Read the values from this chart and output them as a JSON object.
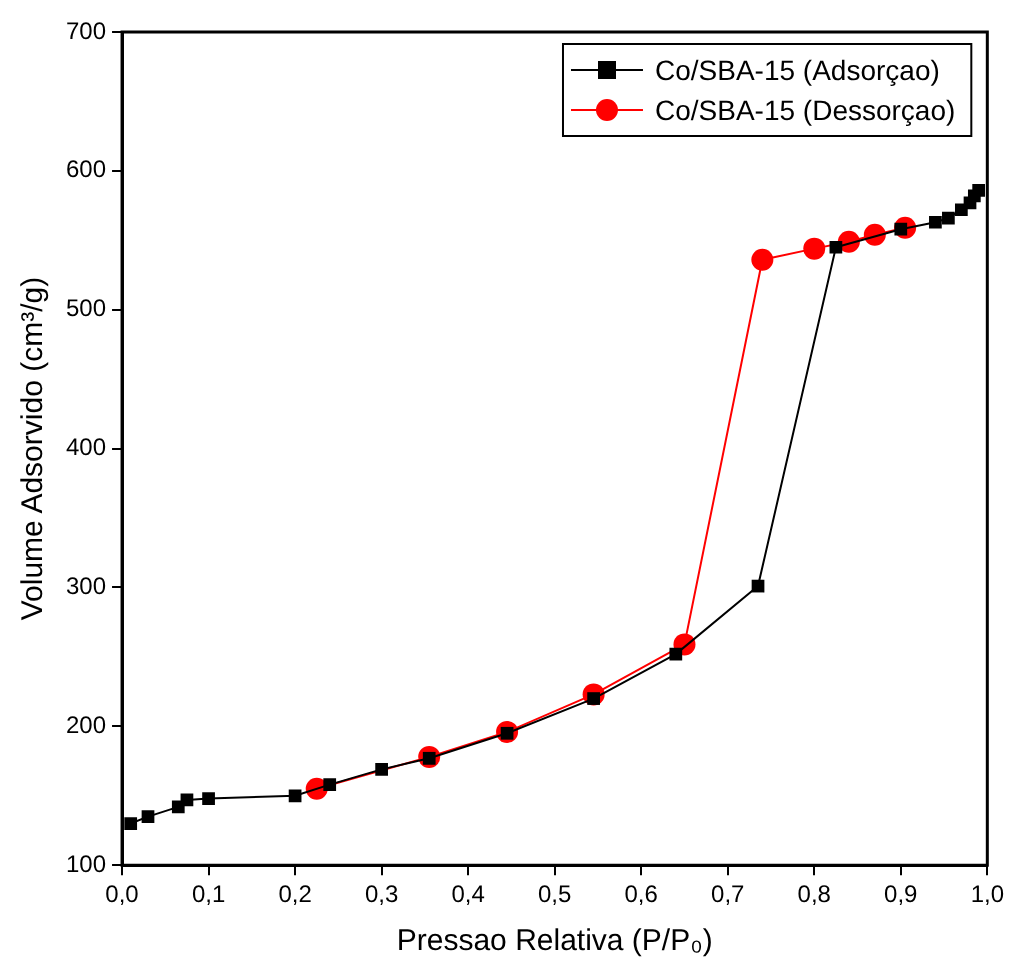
{
  "chart_data": {
    "type": "line",
    "xlabel": "Pressao Relativa (P/P₀)",
    "ylabel": "Volume Adsorvido (cm³/g)",
    "xlim": [
      0,
      1
    ],
    "xticks": [
      {
        "value": 0,
        "label": "0,0"
      },
      {
        "value": 0.1,
        "label": "0,1"
      },
      {
        "value": 0.2,
        "label": "0,2"
      },
      {
        "value": 0.3,
        "label": "0,3"
      },
      {
        "value": 0.4,
        "label": "0,4"
      },
      {
        "value": 0.5,
        "label": "0,5"
      },
      {
        "value": 0.6,
        "label": "0,6"
      },
      {
        "value": 0.7,
        "label": "0,7"
      },
      {
        "value": 0.8,
        "label": "0,8"
      },
      {
        "value": 0.9,
        "label": "0,9"
      },
      {
        "value": 1,
        "label": "1,0"
      }
    ],
    "ylim": [
      100,
      700
    ],
    "yticks": [
      100,
      200,
      300,
      400,
      500,
      600,
      700
    ],
    "grid": false,
    "legend": "top right",
    "line_style": "solid",
    "series": [
      {
        "name": "Co/SBA-15 (Adsorçao)",
        "color": "#000000",
        "marker": "square",
        "x": [
          0.01,
          0.03,
          0.065,
          0.075,
          0.1,
          0.2,
          0.24,
          0.3,
          0.355,
          0.445,
          0.545,
          0.64,
          0.735,
          0.825,
          0.9,
          0.94,
          0.955,
          0.97,
          0.98,
          0.985,
          0.99
        ],
        "values": [
          130,
          135,
          142,
          147,
          148,
          150,
          158,
          169,
          177,
          195,
          220,
          252,
          301,
          545,
          558,
          563,
          566,
          572,
          577,
          582,
          586
        ]
      },
      {
        "name": "Co/SBA-15 (Dessorçao)",
        "color": "#ff0000",
        "marker": "circle",
        "x": [
          0.905,
          0.87,
          0.84,
          0.8,
          0.74,
          0.65,
          0.545,
          0.445,
          0.355,
          0.225
        ],
        "values": [
          559,
          554,
          549,
          544,
          536,
          259,
          223,
          196,
          178,
          155
        ]
      }
    ]
  }
}
